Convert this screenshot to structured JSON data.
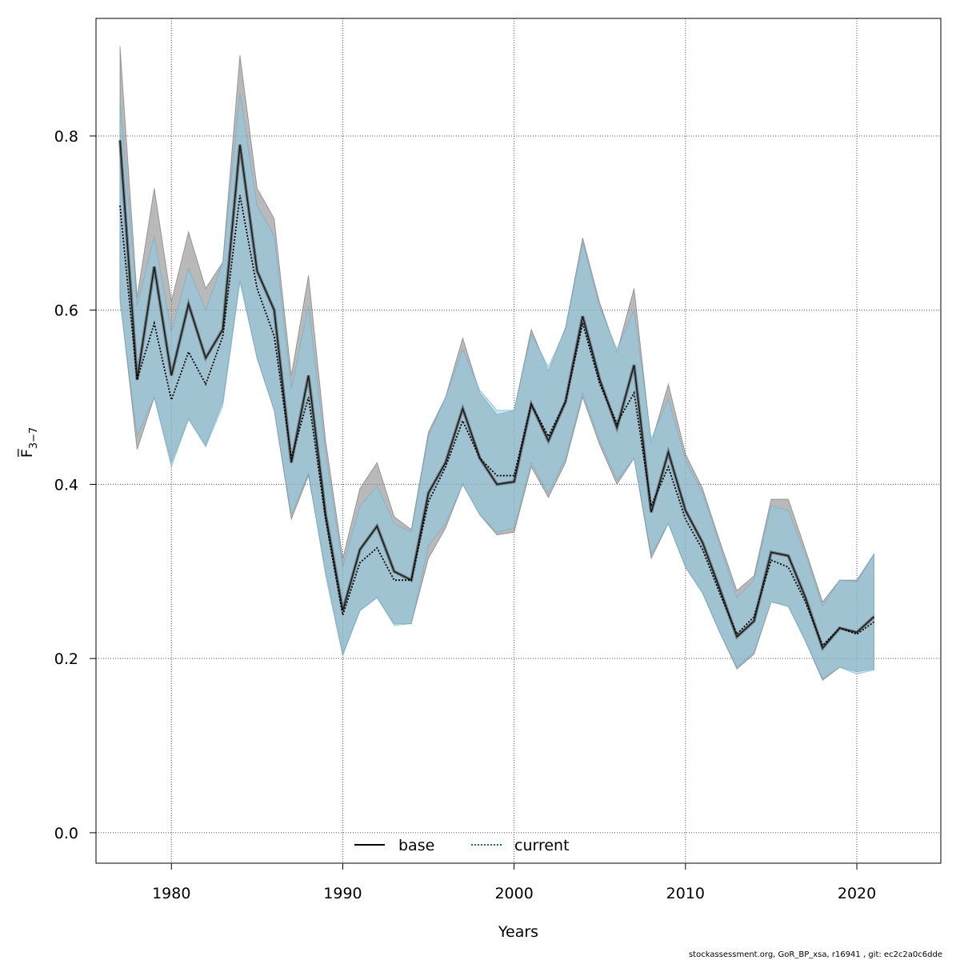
{
  "chart_data": {
    "type": "line",
    "xlabel": "Years",
    "ylabel": "F̅",
    "ylabel_subscript": "3−7",
    "xlim": [
      1975.6,
      2024.9
    ],
    "ylim": [
      -0.035,
      0.935
    ],
    "xticks": [
      1980,
      1990,
      2000,
      2010,
      2020
    ],
    "yticks": [
      0.0,
      0.2,
      0.4,
      0.6,
      0.8
    ],
    "ytick_labels": [
      "0.0",
      "0.2",
      "0.4",
      "0.6",
      "0.8"
    ],
    "grid": true,
    "legend_position": "bottom-center",
    "x": [
      1977,
      1978,
      1979,
      1980,
      1981,
      1982,
      1983,
      1984,
      1985,
      1986,
      1987,
      1988,
      1989,
      1990,
      1991,
      1992,
      1993,
      1994,
      1995,
      1996,
      1997,
      1998,
      1999,
      2000,
      2001,
      2002,
      2003,
      2004,
      2005,
      2006,
      2007,
      2008,
      2009,
      2010,
      2011,
      2012,
      2013,
      2014,
      2015,
      2016,
      2017,
      2018,
      2019,
      2020,
      2021
    ],
    "series": [
      {
        "name": "base",
        "line_style": "solid",
        "line_color": "#000000",
        "band_color": "#808080",
        "values": [
          0.795,
          0.52,
          0.65,
          0.525,
          0.607,
          0.545,
          0.578,
          0.79,
          0.645,
          0.6,
          0.425,
          0.525,
          0.365,
          0.255,
          0.325,
          0.352,
          0.3,
          0.29,
          0.39,
          0.425,
          0.487,
          0.43,
          0.4,
          0.403,
          0.492,
          0.45,
          0.495,
          0.593,
          0.52,
          0.465,
          0.537,
          0.368,
          0.437,
          0.37,
          0.333,
          0.28,
          0.225,
          0.243,
          0.322,
          0.318,
          0.27,
          0.212,
          0.235,
          0.23,
          0.248
        ],
        "upper": [
          0.903,
          0.615,
          0.74,
          0.61,
          0.69,
          0.625,
          0.655,
          0.893,
          0.74,
          0.705,
          0.525,
          0.64,
          0.45,
          0.315,
          0.395,
          0.425,
          0.363,
          0.348,
          0.46,
          0.5,
          0.568,
          0.505,
          0.48,
          0.485,
          0.578,
          0.53,
          0.58,
          0.683,
          0.608,
          0.552,
          0.625,
          0.447,
          0.515,
          0.435,
          0.395,
          0.335,
          0.278,
          0.295,
          0.383,
          0.383,
          0.325,
          0.265,
          0.29,
          0.29,
          0.32
        ],
        "lower": [
          0.615,
          0.44,
          0.5,
          0.425,
          0.475,
          0.445,
          0.495,
          0.635,
          0.545,
          0.485,
          0.36,
          0.41,
          0.3,
          0.205,
          0.255,
          0.27,
          0.24,
          0.24,
          0.315,
          0.35,
          0.4,
          0.365,
          0.342,
          0.345,
          0.42,
          0.385,
          0.425,
          0.5,
          0.445,
          0.4,
          0.43,
          0.315,
          0.355,
          0.305,
          0.275,
          0.23,
          0.188,
          0.205,
          0.265,
          0.26,
          0.22,
          0.175,
          0.19,
          0.185,
          0.188
        ]
      },
      {
        "name": "current",
        "line_style": "dotted",
        "line_color": "#000000",
        "band_color": "#87CEEB",
        "values": [
          0.72,
          0.52,
          0.585,
          0.497,
          0.552,
          0.515,
          0.57,
          0.732,
          0.625,
          0.57,
          0.43,
          0.5,
          0.36,
          0.25,
          0.31,
          0.327,
          0.29,
          0.29,
          0.38,
          0.42,
          0.473,
          0.43,
          0.41,
          0.41,
          0.492,
          0.455,
          0.495,
          0.585,
          0.515,
          0.47,
          0.505,
          0.375,
          0.42,
          0.36,
          0.325,
          0.275,
          0.228,
          0.248,
          0.313,
          0.305,
          0.265,
          0.215,
          0.235,
          0.228,
          0.242
        ],
        "upper": [
          0.84,
          0.605,
          0.685,
          0.575,
          0.648,
          0.6,
          0.655,
          0.848,
          0.72,
          0.685,
          0.51,
          0.605,
          0.435,
          0.305,
          0.375,
          0.398,
          0.355,
          0.345,
          0.455,
          0.5,
          0.555,
          0.508,
          0.485,
          0.485,
          0.573,
          0.535,
          0.578,
          0.678,
          0.603,
          0.555,
          0.6,
          0.452,
          0.498,
          0.428,
          0.39,
          0.33,
          0.27,
          0.29,
          0.375,
          0.37,
          0.32,
          0.26,
          0.29,
          0.288,
          0.32
        ],
        "lower": [
          0.61,
          0.455,
          0.5,
          0.42,
          0.475,
          0.443,
          0.49,
          0.632,
          0.545,
          0.485,
          0.365,
          0.413,
          0.295,
          0.203,
          0.255,
          0.27,
          0.238,
          0.24,
          0.33,
          0.355,
          0.4,
          0.365,
          0.345,
          0.35,
          0.425,
          0.39,
          0.43,
          0.505,
          0.45,
          0.405,
          0.43,
          0.32,
          0.355,
          0.305,
          0.275,
          0.23,
          0.19,
          0.207,
          0.265,
          0.26,
          0.22,
          0.177,
          0.19,
          0.182,
          0.187
        ]
      }
    ]
  },
  "footer": "stockassessment.org, GoR_BP_xsa, r16941 , git: ec2c2a0c6dde"
}
